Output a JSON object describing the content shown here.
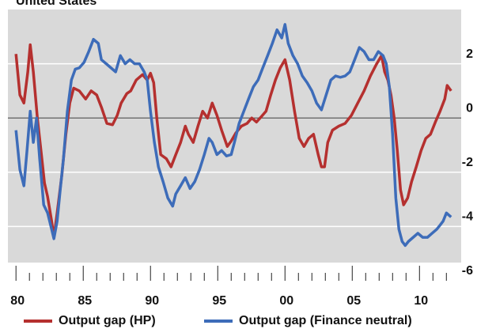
{
  "chart_data": {
    "type": "line",
    "title": "United States",
    "xlim": [
      1979.4,
      2013.1
    ],
    "xticks": [
      {
        "value": 1980,
        "label": "80"
      },
      {
        "value": 1985,
        "label": "85"
      },
      {
        "value": 1990,
        "label": "90"
      },
      {
        "value": 1995,
        "label": "95"
      },
      {
        "value": 2000,
        "label": "00"
      },
      {
        "value": 2005,
        "label": "05"
      },
      {
        "value": 2010,
        "label": "10"
      }
    ],
    "xminorticks": [
      1981,
      1982,
      1983,
      1984,
      1986,
      1987,
      1988,
      1989,
      1991,
      1992,
      1993,
      1994,
      1996,
      1997,
      1998,
      1999,
      2001,
      2002,
      2003,
      2004,
      2006,
      2007,
      2008,
      2009,
      2011,
      2012
    ],
    "ylim": [
      -6,
      4
    ],
    "yticks": [
      -6,
      -4,
      -2,
      0,
      2
    ],
    "grid": true,
    "zero_line": true,
    "series": [
      {
        "name": "Output gap (HP)",
        "color": "#b5302f",
        "x": [
          1980.0,
          1980.29,
          1980.59,
          1980.88,
          1981.06,
          1981.29,
          1981.59,
          1981.88,
          1982.12,
          1982.35,
          1982.65,
          1982.82,
          1983.06,
          1983.41,
          1983.71,
          1984.0,
          1984.29,
          1984.71,
          1985.18,
          1985.59,
          1986.0,
          1986.35,
          1986.76,
          1987.18,
          1987.53,
          1987.82,
          1988.24,
          1988.53,
          1988.94,
          1989.41,
          1989.76,
          1990.0,
          1990.24,
          1990.47,
          1990.76,
          1991.18,
          1991.53,
          1991.88,
          1992.24,
          1992.59,
          1992.82,
          1993.18,
          1993.53,
          1993.88,
          1994.24,
          1994.59,
          1994.94,
          1995.29,
          1995.71,
          1996.0,
          1996.35,
          1996.76,
          1997.18,
          1997.53,
          1997.88,
          1998.24,
          1998.59,
          1998.94,
          1999.29,
          1999.65,
          2000.0,
          2000.35,
          2000.71,
          2001.06,
          2001.41,
          2001.76,
          2002.12,
          2002.47,
          2002.71,
          2002.94,
          2003.18,
          2003.53,
          2004.0,
          2004.47,
          2004.94,
          2005.41,
          2005.88,
          2006.35,
          2006.82,
          2007.18,
          2007.41,
          2007.65,
          2007.88,
          2008.12,
          2008.35,
          2008.59,
          2008.82,
          2009.12,
          2009.41,
          2009.76,
          2010.12,
          2010.47,
          2010.82,
          2011.18,
          2011.53,
          2011.88,
          2012.06,
          2012.35
        ],
        "values": [
          2.36,
          0.85,
          0.55,
          1.7,
          2.7,
          1.7,
          0,
          -1.3,
          -2.4,
          -2.9,
          -3.8,
          -4.4,
          -3.5,
          -2.1,
          -0.6,
          0.55,
          1.1,
          1.0,
          0.7,
          1.0,
          0.85,
          0.4,
          -0.2,
          -0.25,
          0.1,
          0.55,
          0.9,
          1.0,
          1.4,
          1.6,
          1.4,
          1.65,
          1.3,
          0,
          -1.35,
          -1.5,
          -1.8,
          -1.35,
          -0.9,
          -0.3,
          -0.6,
          -0.9,
          -0.3,
          0.25,
          0,
          0.55,
          0.1,
          -0.45,
          -1.05,
          -0.85,
          -0.55,
          -0.3,
          -0.2,
          0,
          -0.15,
          0.05,
          0.25,
          0.85,
          1.4,
          1.85,
          2.15,
          1.4,
          0.25,
          -0.75,
          -1.05,
          -0.75,
          -0.6,
          -1.35,
          -1.8,
          -1.8,
          -0.9,
          -0.45,
          -0.3,
          -0.2,
          0.1,
          0.55,
          1.0,
          1.55,
          2.0,
          2.3,
          1.7,
          1.4,
          0.85,
          0,
          -1.2,
          -2.65,
          -3.2,
          -2.95,
          -2.35,
          -1.8,
          -1.2,
          -0.75,
          -0.6,
          -0.15,
          0.25,
          0.7,
          1.2,
          1.0
        ]
      },
      {
        "name": "Output gap (Finance neutral)",
        "color": "#3d6cb9",
        "x": [
          1980.0,
          1980.29,
          1980.59,
          1980.82,
          1981.06,
          1981.29,
          1981.53,
          1981.76,
          1982.06,
          1982.35,
          1982.65,
          1982.82,
          1983.06,
          1983.29,
          1983.53,
          1983.82,
          1984.12,
          1984.41,
          1984.71,
          1985.06,
          1985.41,
          1985.76,
          1986.12,
          1986.35,
          1986.71,
          1987.06,
          1987.41,
          1987.76,
          1988.12,
          1988.47,
          1988.82,
          1989.18,
          1989.53,
          1989.76,
          1990.0,
          1990.29,
          1990.59,
          1990.94,
          1991.29,
          1991.65,
          1991.88,
          1992.24,
          1992.59,
          1992.94,
          1993.29,
          1993.65,
          1994.0,
          1994.35,
          1994.59,
          1994.94,
          1995.29,
          1995.65,
          1996.0,
          1996.24,
          1996.59,
          1996.94,
          1997.29,
          1997.65,
          1998.0,
          1998.35,
          1998.71,
          1999.06,
          1999.41,
          1999.76,
          2000.0,
          2000.24,
          2000.59,
          2000.94,
          2001.29,
          2001.65,
          2002.0,
          2002.35,
          2002.71,
          2003.06,
          2003.41,
          2003.76,
          2004.12,
          2004.47,
          2004.82,
          2005.18,
          2005.53,
          2005.88,
          2006.24,
          2006.59,
          2006.94,
          2007.29,
          2007.53,
          2007.76,
          2008.0,
          2008.24,
          2008.47,
          2008.71,
          2008.94,
          2009.18,
          2009.53,
          2009.88,
          2010.24,
          2010.59,
          2010.94,
          2011.29,
          2011.53,
          2011.76,
          2012.0,
          2012.35
        ],
        "values": [
          -0.45,
          -1.9,
          -2.5,
          -1.2,
          0.25,
          -0.9,
          0,
          -1.5,
          -3.2,
          -3.5,
          -4.1,
          -4.45,
          -3.8,
          -2.65,
          -1.5,
          0.25,
          1.4,
          1.8,
          1.85,
          2.05,
          2.45,
          2.9,
          2.75,
          2.15,
          2.0,
          1.85,
          1.7,
          2.3,
          2.0,
          2.15,
          2.0,
          2.0,
          1.7,
          1.4,
          0.25,
          -0.9,
          -1.8,
          -2.35,
          -2.95,
          -3.25,
          -2.8,
          -2.5,
          -2.2,
          -2.6,
          -2.35,
          -1.9,
          -1.35,
          -0.75,
          -0.9,
          -1.35,
          -1.2,
          -1.4,
          -1.35,
          -0.9,
          -0.2,
          0.25,
          0.7,
          1.15,
          1.4,
          1.85,
          2.3,
          2.75,
          3.25,
          2.95,
          3.45,
          2.75,
          2.3,
          2.0,
          1.55,
          1.3,
          1.0,
          0.55,
          0.3,
          0.85,
          1.4,
          1.55,
          1.5,
          1.55,
          1.7,
          2.15,
          2.6,
          2.45,
          2.15,
          2.15,
          2.45,
          2.3,
          2.0,
          1.15,
          -0.6,
          -2.95,
          -4.1,
          -4.55,
          -4.7,
          -4.55,
          -4.4,
          -4.25,
          -4.4,
          -4.4,
          -4.25,
          -4.1,
          -3.95,
          -3.8,
          -3.5,
          -3.65
        ]
      }
    ]
  }
}
